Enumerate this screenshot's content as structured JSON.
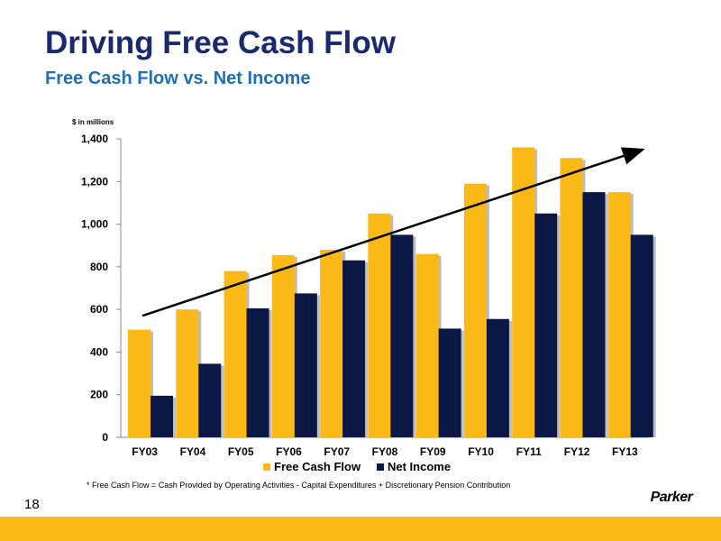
{
  "slide": {
    "title": "Driving Free Cash Flow",
    "subtitle": "Free Cash Flow vs. Net Income",
    "footnote": "* Free Cash Flow  = Cash Provided by Operating Activities  - Capital Expenditures + Discretionary Pension Contribution",
    "page_number": "18",
    "logo_text": "Parker",
    "accent_color": "#fbb917"
  },
  "chart_data": {
    "type": "bar",
    "title": "",
    "ylabel": "$ in millions",
    "xlabel": "",
    "categories": [
      "FY03",
      "FY04",
      "FY05",
      "FY06",
      "FY07",
      "FY08",
      "FY09",
      "FY10",
      "FY11",
      "FY12",
      "FY13"
    ],
    "series": [
      {
        "name": "Free Cash Flow",
        "color": "#fbb917",
        "values": [
          505,
          600,
          780,
          855,
          880,
          1050,
          860,
          1190,
          1360,
          1310,
          1150
        ]
      },
      {
        "name": "Net Income",
        "color": "#0b1846",
        "values": [
          195,
          345,
          605,
          675,
          830,
          950,
          510,
          555,
          1050,
          1150,
          950
        ]
      }
    ],
    "ylim": [
      0,
      1400
    ],
    "yticks": [
      "0",
      "200",
      "400",
      "600",
      "800",
      "1,000",
      "1,200",
      "1,400"
    ],
    "ytick_values": [
      0,
      200,
      400,
      600,
      800,
      1000,
      1200,
      1400
    ],
    "legend_position": "bottom",
    "trend_arrow": {
      "from_value": 570,
      "to_value": 1350
    },
    "grid": false
  }
}
